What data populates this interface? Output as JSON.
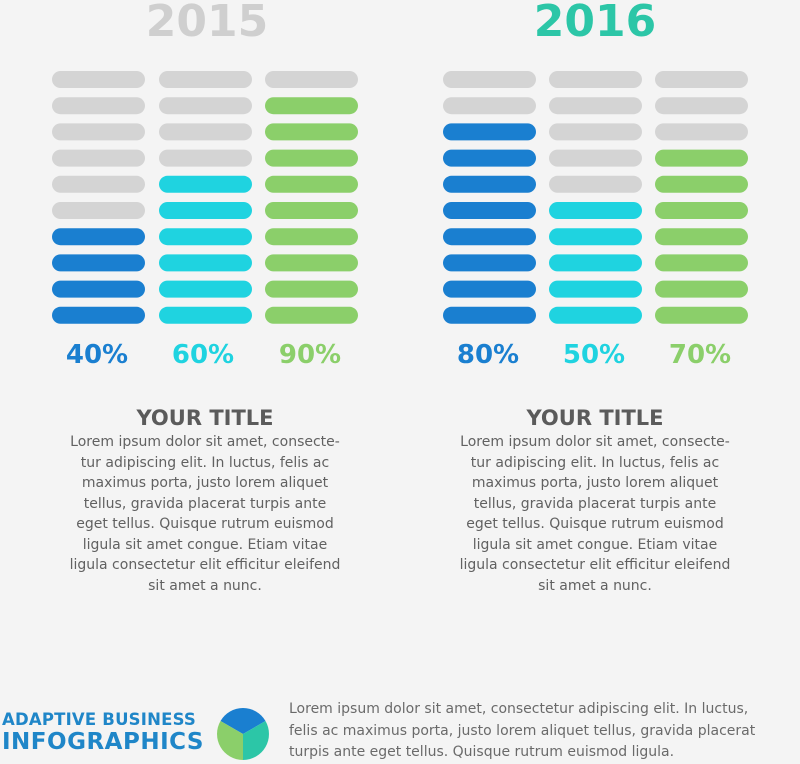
{
  "chart_data": [
    {
      "type": "bar",
      "title": "2015",
      "categories": [
        "",
        "",
        ""
      ],
      "values": [
        40,
        60,
        90
      ],
      "value_labels": [
        "40%",
        "60%",
        "90%"
      ],
      "ylim": [
        0,
        100
      ],
      "segments": 10,
      "empty_color": "#d4d4d4",
      "colors": [
        "#1a7fd0",
        "#1fd3e0",
        "#8bcf6a"
      ],
      "title_color": "#cfcfcf"
    },
    {
      "type": "bar",
      "title": "2016",
      "categories": [
        "",
        "",
        ""
      ],
      "values": [
        80,
        50,
        70
      ],
      "value_labels": [
        "80%",
        "50%",
        "70%"
      ],
      "ylim": [
        0,
        100
      ],
      "segments": 10,
      "empty_color": "#d4d4d4",
      "colors": [
        "#1a7fd0",
        "#1fd3e0",
        "#8bcf6a"
      ],
      "title_color": "#2cc6a7"
    }
  ],
  "blocks": [
    {
      "title": "YOUR TITLE",
      "lines": [
        "Lorem ipsum dolor sit amet, consecte-",
        "tur adipiscing elit. In luctus, felis ac",
        "maximus porta, justo lorem aliquet",
        "tellus, gravida placerat turpis ante",
        "eget tellus. Quisque rutrum euismod",
        "ligula sit amet congue. Etiam vitae",
        "ligula consectetur elit efficitur eleifend",
        "sit amet a nunc."
      ]
    },
    {
      "title": "YOUR TITLE",
      "lines": [
        "Lorem ipsum dolor sit amet, consecte-",
        "tur adipiscing elit. In luctus, felis ac",
        "maximus porta, justo lorem aliquet",
        "tellus, gravida placerat turpis ante",
        "eget tellus. Quisque rutrum euismod",
        "ligula sit amet congue. Etiam vitae",
        "ligula consectetur elit efficitur eleifend",
        "sit amet a nunc."
      ]
    }
  ],
  "footer": {
    "brand_line1": "ADAPTIVE BUSINESS",
    "brand_line2": "INFOGRAPHICS",
    "lines": [
      "Lorem ipsum dolor sit amet, consectetur adipiscing elit. In luctus,",
      "felis ac maximus porta, justo lorem aliquet tellus, gravida placerat",
      "turpis ante eget tellus. Quisque rutrum euismod ligula."
    ],
    "logo_colors": [
      "#1a7fd0",
      "#2cc6a7",
      "#8bcf6a"
    ]
  }
}
